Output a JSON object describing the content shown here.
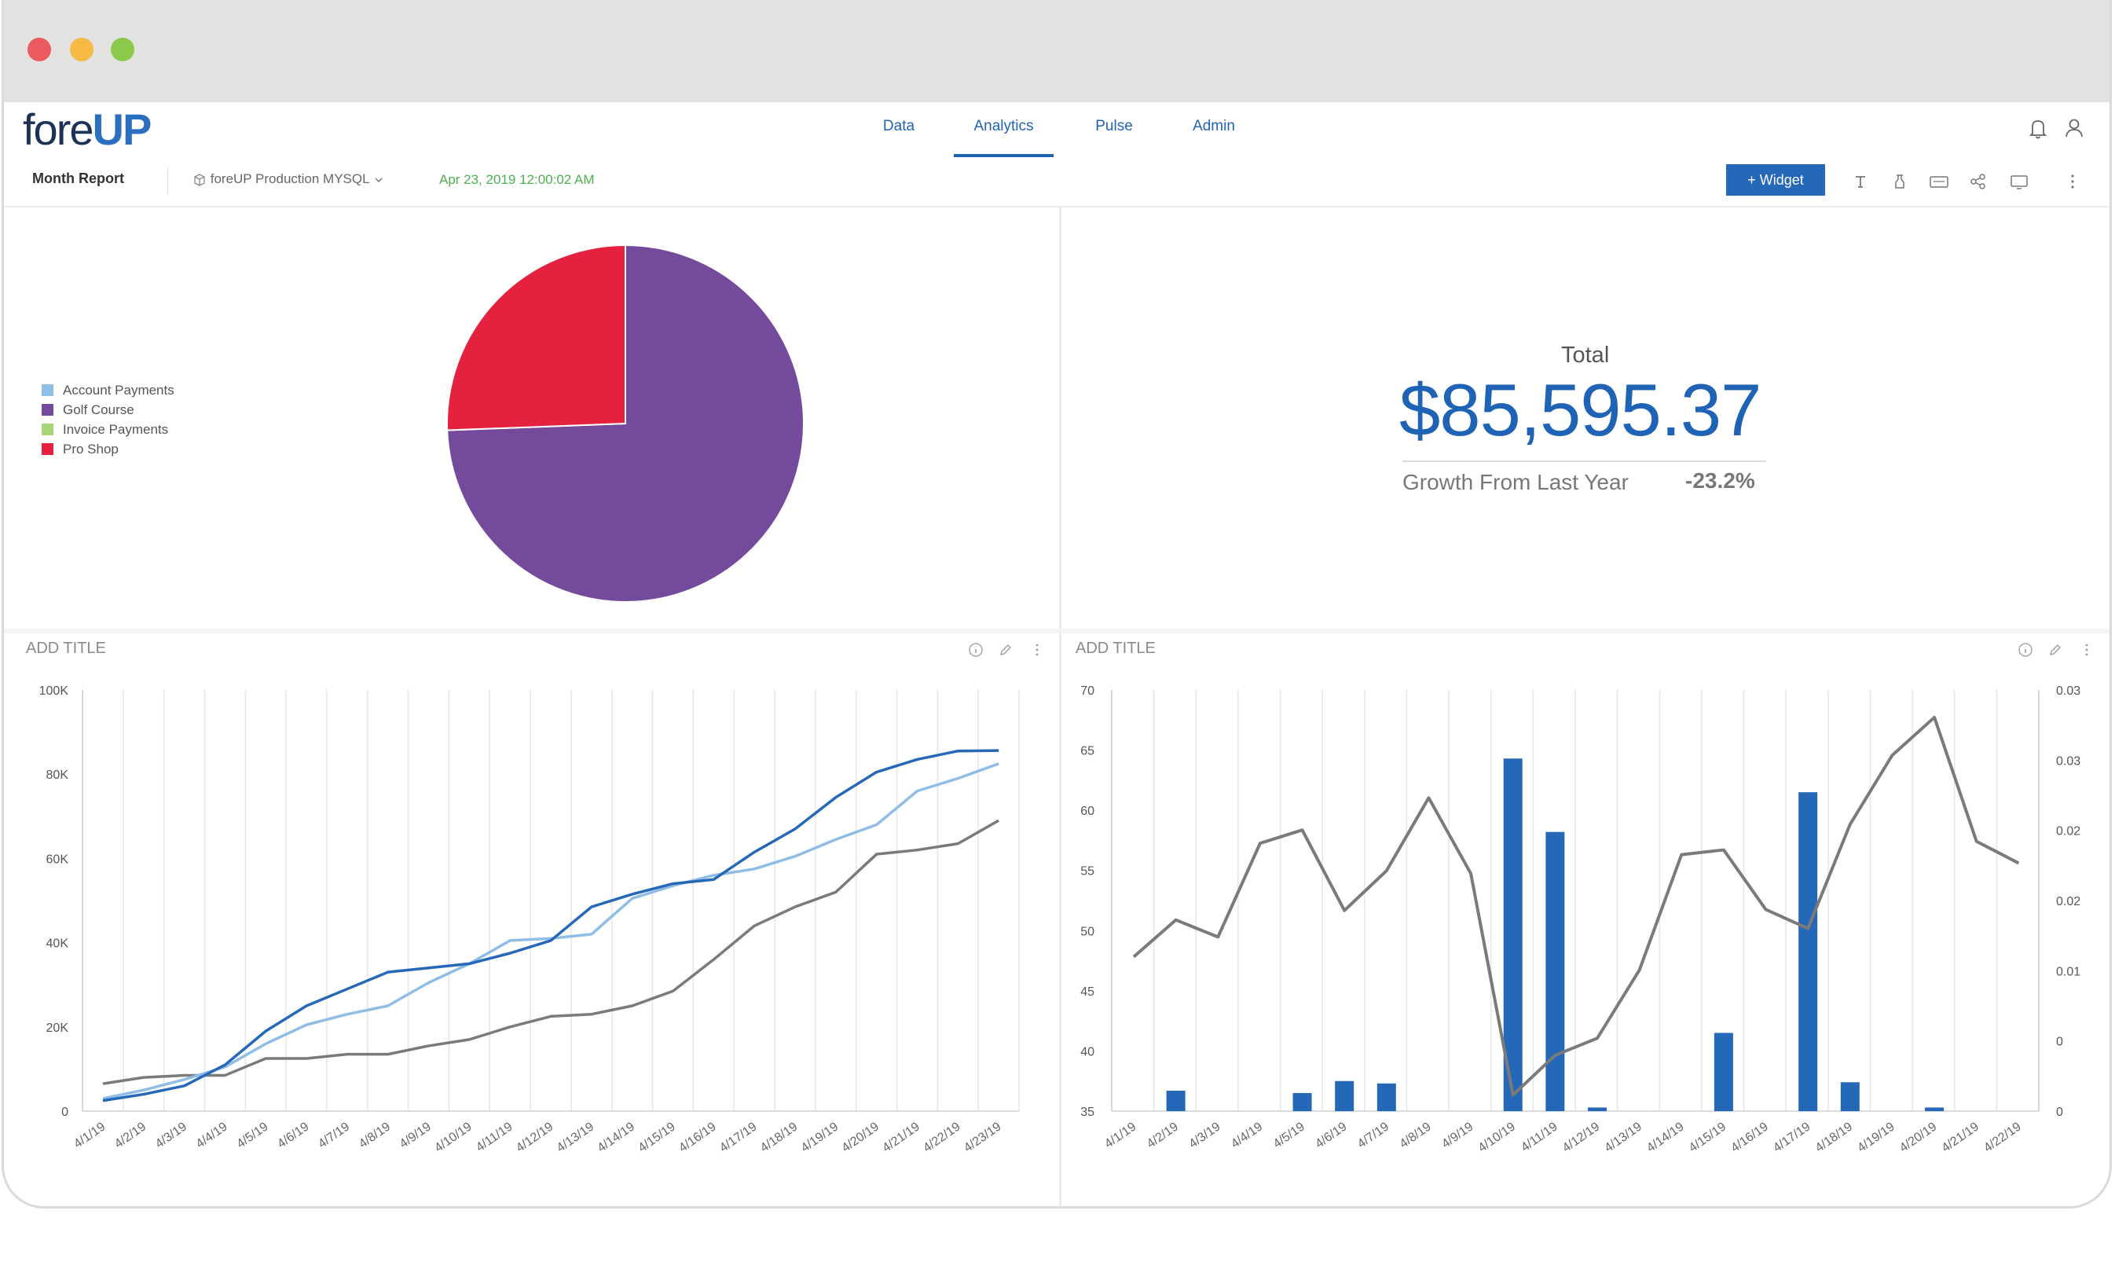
{
  "window": {
    "dots": [
      "#ea5a5f",
      "#f5b944",
      "#8bc94a"
    ]
  },
  "logo": {
    "fore": "fore",
    "up": "UP"
  },
  "nav": {
    "tabs": [
      "Data",
      "Analytics",
      "Pulse",
      "Admin"
    ],
    "active": "Analytics"
  },
  "toolbar": {
    "report_name": "Month Report",
    "datasource": "foreUP Production MYSQL",
    "timestamp": "Apr 23, 2019 12:00:02 AM",
    "widget_button": "+ Widget"
  },
  "pie_widget": {
    "legend": [
      {
        "label": "Account Payments",
        "color": "#8ec0e6"
      },
      {
        "label": "Golf Course",
        "color": "#744a9c"
      },
      {
        "label": "Invoice Payments",
        "color": "#a8d57a"
      },
      {
        "label": "Pro Shop",
        "color": "#e4213f"
      }
    ]
  },
  "kpi_widget": {
    "label": "Total",
    "value": "$85,595.37",
    "growth_label": "Growth From Last Year",
    "growth_value": "-23.2%"
  },
  "line_widget": {
    "title": "ADD TITLE"
  },
  "bar_widget": {
    "title": "ADD TITLE"
  },
  "chart_data": [
    {
      "type": "pie",
      "categories": [
        "Account Payments",
        "Golf Course",
        "Invoice Payments",
        "Pro Shop"
      ],
      "values": [
        0,
        74.4,
        0,
        25.6
      ],
      "colors": [
        "#8ec0e6",
        "#744a9c",
        "#a8d57a",
        "#e4213f"
      ],
      "legend": "left"
    },
    {
      "type": "line",
      "x": [
        "4/1/19",
        "4/2/19",
        "4/3/19",
        "4/4/19",
        "4/5/19",
        "4/6/19",
        "4/7/19",
        "4/8/19",
        "4/9/19",
        "4/10/19",
        "4/11/19",
        "4/12/19",
        "4/13/19",
        "4/14/19",
        "4/15/19",
        "4/16/19",
        "4/17/19",
        "4/18/19",
        "4/19/19",
        "4/20/19",
        "4/21/19",
        "4/22/19",
        "4/23/19"
      ],
      "yticks": [
        "0",
        "20K",
        "40K",
        "60K",
        "80K",
        "100K"
      ],
      "ylim": [
        0,
        100000
      ],
      "grid": "vertical",
      "series": [
        {
          "color": "#2568b8",
          "values": [
            2500,
            4000,
            6000,
            11000,
            19000,
            25000,
            29000,
            33000,
            34000,
            35000,
            37500,
            40500,
            48500,
            51500,
            54000,
            55000,
            61500,
            67000,
            74500,
            80500,
            83500,
            85500,
            85600
          ]
        },
        {
          "color": "#8fbde6",
          "values": [
            3000,
            5000,
            7500,
            10500,
            16000,
            20500,
            23000,
            25000,
            30500,
            35000,
            40500,
            41000,
            42000,
            50500,
            53500,
            56000,
            57500,
            60500,
            64500,
            68000,
            76000,
            79000,
            82500
          ]
        },
        {
          "color": "#7a7a7a",
          "values": [
            6500,
            8000,
            8500,
            8500,
            12500,
            12500,
            13500,
            13500,
            15500,
            17000,
            20000,
            22500,
            23000,
            25000,
            28500,
            36000,
            44000,
            48500,
            52000,
            61000,
            62000,
            63500,
            69000
          ]
        }
      ]
    },
    {
      "type": "bar",
      "x": [
        "4/1/19",
        "4/2/19",
        "4/3/19",
        "4/4/19",
        "4/5/19",
        "4/6/19",
        "4/7/19",
        "4/8/19",
        "4/9/19",
        "4/10/19",
        "4/11/19",
        "4/12/19",
        "4/13/19",
        "4/14/19",
        "4/15/19",
        "4/16/19",
        "4/17/19",
        "4/18/19",
        "4/19/19",
        "4/20/19",
        "4/21/19",
        "4/22/19"
      ],
      "yticks_left": [
        "35",
        "40",
        "45",
        "50",
        "55",
        "60",
        "65",
        "70"
      ],
      "ylim_left": [
        35,
        70
      ],
      "yticks_right": [
        "0",
        "0",
        "0.01",
        "0.02",
        "0.02",
        "0.03",
        "0.03"
      ],
      "grid": "vertical",
      "series": [
        {
          "type": "bar",
          "color": "#2568b8",
          "axis": "left",
          "values": [
            35,
            36.7,
            35,
            35,
            36.5,
            37.5,
            37.3,
            35,
            35,
            64.3,
            58.2,
            35.3,
            35,
            35,
            41.5,
            35,
            61.5,
            37.4,
            35,
            35.3,
            35,
            35
          ]
        },
        {
          "type": "line",
          "color": "#7a7a7a",
          "axis": "right",
          "values": [
            0.0063,
            0.0102,
            0.0084,
            0.0183,
            0.0197,
            0.0112,
            0.0154,
            0.0231,
            0.0151,
            -0.0083,
            -0.0041,
            -0.0023,
            0.0049,
            0.0171,
            0.0176,
            0.0113,
            0.0093,
            0.0203,
            0.0276,
            0.0316,
            0.0185,
            0.0162
          ]
        }
      ]
    }
  ]
}
